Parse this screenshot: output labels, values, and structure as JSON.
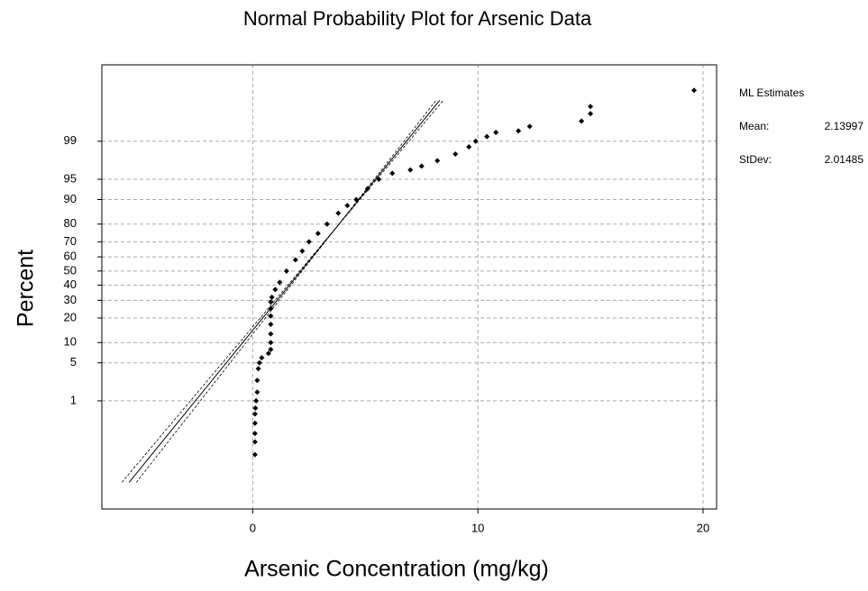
{
  "chart_data": {
    "type": "probability",
    "title": "Normal Probability Plot for Arsenic Data",
    "x_label": "Arsenic Concentration (mg/kg)",
    "y_label": "Percent",
    "y_scale": "normal",
    "xlim": [
      -6.7,
      20.6
    ],
    "xticks": [
      0,
      10,
      20
    ],
    "ylim": [
      0.001,
      99.989
    ],
    "yticks": [
      1,
      5,
      10,
      20,
      30,
      40,
      50,
      60,
      70,
      80,
      90,
      95,
      99
    ],
    "grid": true,
    "color": "#000000",
    "x": [
      0.1,
      0.1,
      0.1,
      0.1,
      0.1,
      0.12,
      0.15,
      0.2,
      0.2,
      0.25,
      0.3,
      0.4,
      0.7,
      0.8,
      0.8,
      0.8,
      0.8,
      0.8,
      0.8,
      0.8,
      0.85,
      1.0,
      1.2,
      1.5,
      1.9,
      2.2,
      2.5,
      2.9,
      3.3,
      3.8,
      4.2,
      4.6,
      5.1,
      5.6,
      6.2,
      7.0,
      7.5,
      8.2,
      9.0,
      9.6,
      9.9,
      10.4,
      10.8,
      11.8,
      12.3,
      14.6,
      15.0,
      15.0,
      19.6
    ],
    "values": [
      0.05,
      0.11,
      0.18,
      0.32,
      0.52,
      0.7,
      1,
      1.5,
      2.5,
      4,
      5,
      6,
      7,
      8,
      10,
      13,
      17,
      21,
      25,
      29,
      32,
      37,
      42,
      50,
      58,
      64,
      70,
      75,
      80,
      85,
      88,
      90,
      93,
      95,
      96,
      96.5,
      97,
      97.6,
      98.2,
      98.7,
      99,
      99.2,
      99.35,
      99.4,
      99.52,
      99.64,
      99.76,
      99.84,
      99.94
    ],
    "estimates": {
      "title": "ML Estimates",
      "mean_label": "Mean:",
      "mean": 2.13997,
      "stdev_label": "StDev:",
      "stdev": 2.01485
    }
  }
}
